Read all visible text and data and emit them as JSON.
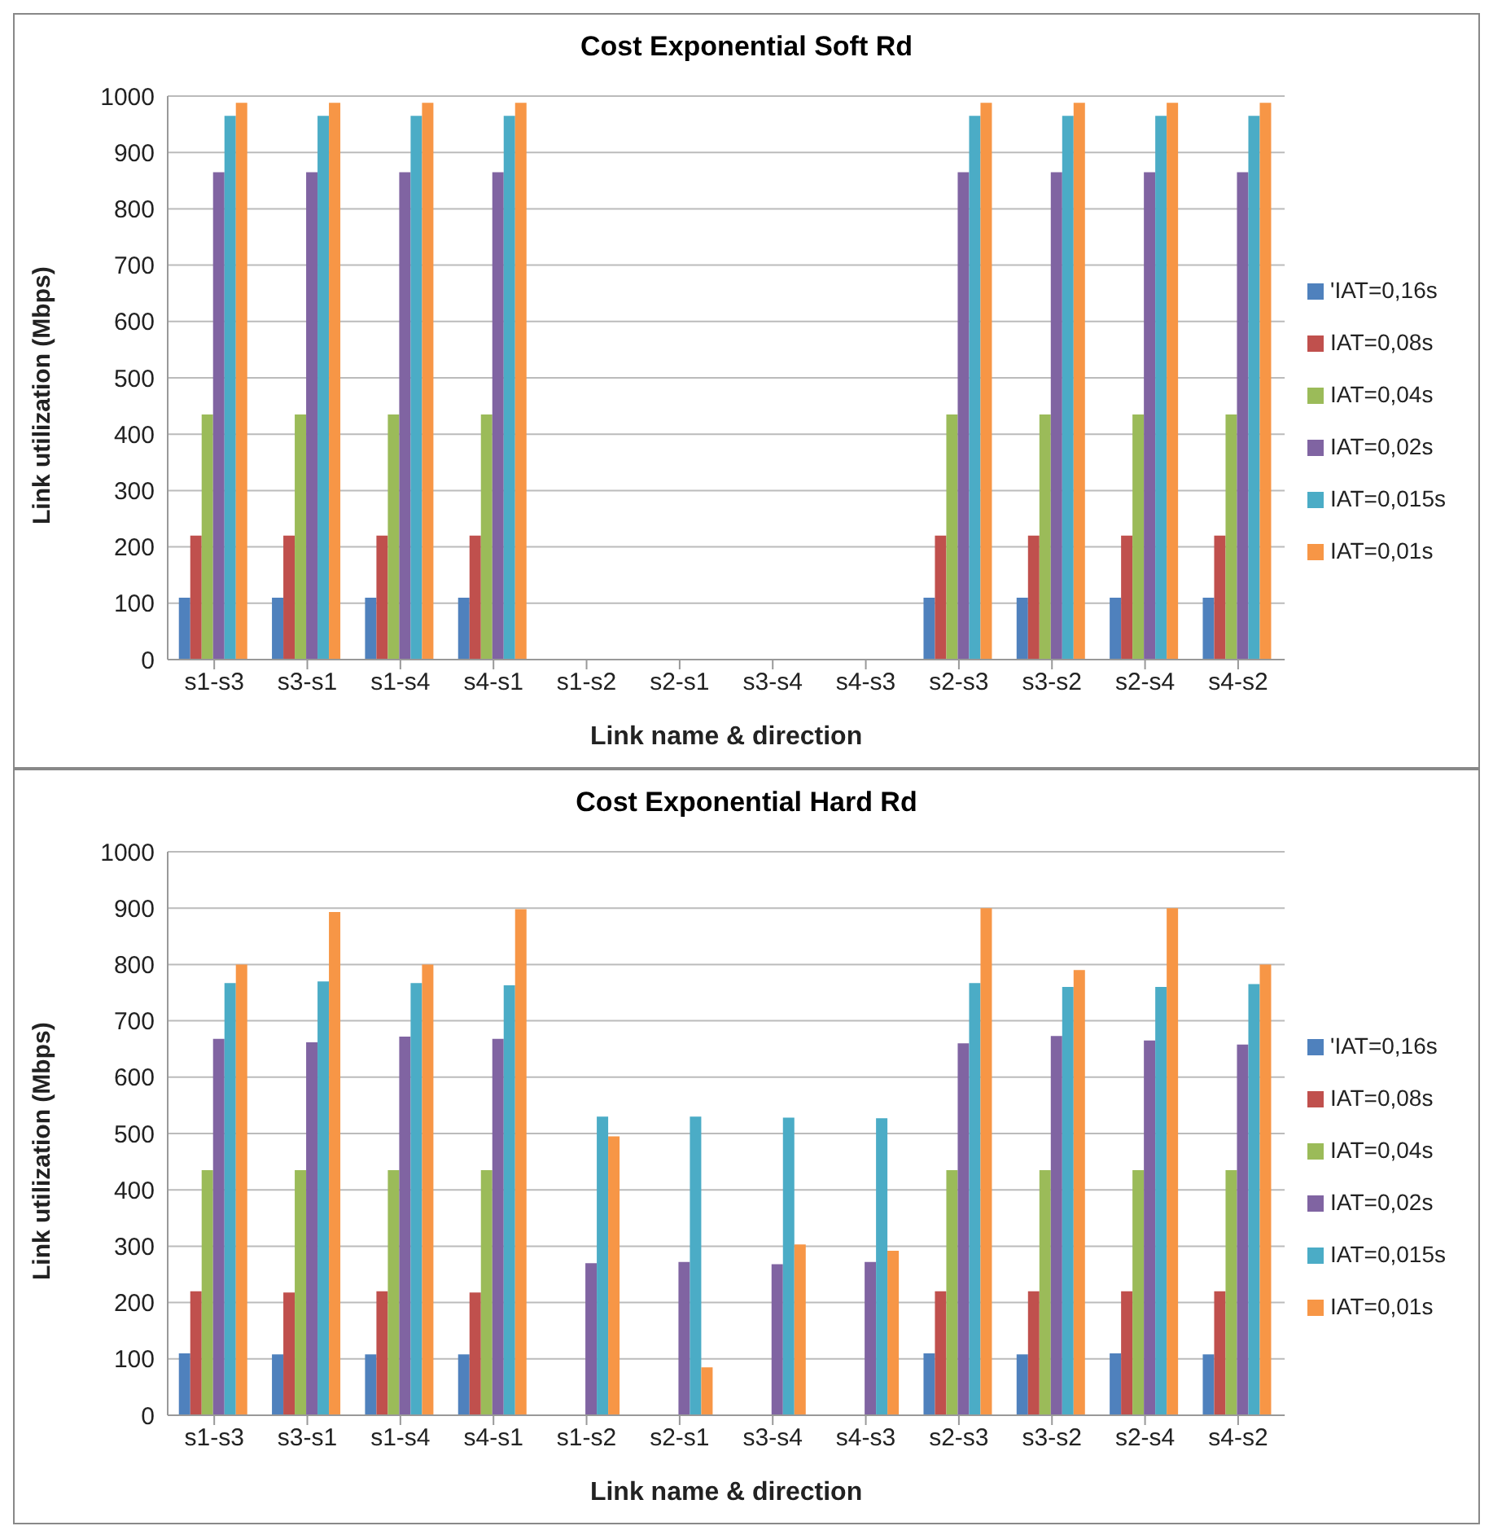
{
  "chart_data": [
    {
      "type": "bar",
      "title": "Cost Exponential Soft Rd",
      "xlabel": "Link name & direction",
      "ylabel": "Link utilization (Mbps)",
      "categories": [
        "s1-s3",
        "s3-s1",
        "s1-s4",
        "s4-s1",
        "s1-s2",
        "s2-s1",
        "s3-s4",
        "s4-s3",
        "s2-s3",
        "s3-s2",
        "s2-s4",
        "s4-s2"
      ],
      "ylim": [
        0,
        1000
      ],
      "yticks": [
        0,
        100,
        200,
        300,
        400,
        500,
        600,
        700,
        800,
        900,
        1000
      ],
      "grid": "y",
      "legend": "right",
      "series": [
        {
          "name": "'IAT=0,16s",
          "color": "#4f81bd",
          "values": [
            110,
            110,
            110,
            110,
            0,
            0,
            0,
            0,
            110,
            110,
            110,
            110
          ]
        },
        {
          "name": "IAT=0,08s",
          "color": "#c0504d",
          "values": [
            220,
            220,
            220,
            220,
            0,
            0,
            0,
            0,
            220,
            220,
            220,
            220
          ]
        },
        {
          "name": "IAT=0,04s",
          "color": "#9bbb59",
          "values": [
            435,
            435,
            435,
            435,
            0,
            0,
            0,
            0,
            435,
            435,
            435,
            435
          ]
        },
        {
          "name": "IAT=0,02s",
          "color": "#8064a2",
          "values": [
            865,
            865,
            865,
            865,
            0,
            0,
            0,
            0,
            865,
            865,
            865,
            865
          ]
        },
        {
          "name": "IAT=0,015s",
          "color": "#4bacc6",
          "values": [
            965,
            965,
            965,
            965,
            0,
            0,
            0,
            0,
            965,
            965,
            965,
            965
          ]
        },
        {
          "name": "IAT=0,01s",
          "color": "#f79646",
          "values": [
            988,
            988,
            988,
            988,
            0,
            0,
            0,
            0,
            988,
            988,
            988,
            988
          ]
        }
      ]
    },
    {
      "type": "bar",
      "title": "Cost Exponential Hard Rd",
      "xlabel": "Link name & direction",
      "ylabel": "Link utilization (Mbps)",
      "categories": [
        "s1-s3",
        "s3-s1",
        "s1-s4",
        "s4-s1",
        "s1-s2",
        "s2-s1",
        "s3-s4",
        "s4-s3",
        "s2-s3",
        "s3-s2",
        "s2-s4",
        "s4-s2"
      ],
      "ylim": [
        0,
        1000
      ],
      "yticks": [
        0,
        100,
        200,
        300,
        400,
        500,
        600,
        700,
        800,
        900,
        1000
      ],
      "grid": "y",
      "legend": "right",
      "series": [
        {
          "name": "'IAT=0,16s",
          "color": "#4f81bd",
          "values": [
            110,
            108,
            108,
            108,
            0,
            0,
            0,
            0,
            110,
            108,
            110,
            108
          ]
        },
        {
          "name": "IAT=0,08s",
          "color": "#c0504d",
          "values": [
            220,
            218,
            220,
            218,
            0,
            0,
            0,
            0,
            220,
            220,
            220,
            220
          ]
        },
        {
          "name": "IAT=0,04s",
          "color": "#9bbb59",
          "values": [
            435,
            435,
            435,
            435,
            0,
            0,
            0,
            0,
            435,
            435,
            435,
            435
          ]
        },
        {
          "name": "IAT=0,02s",
          "color": "#8064a2",
          "values": [
            668,
            662,
            672,
            668,
            270,
            272,
            268,
            272,
            660,
            673,
            665,
            658
          ]
        },
        {
          "name": "IAT=0,015s",
          "color": "#4bacc6",
          "values": [
            767,
            770,
            767,
            763,
            530,
            530,
            528,
            527,
            767,
            760,
            760,
            765
          ]
        },
        {
          "name": "IAT=0,01s",
          "color": "#f79646",
          "values": [
            800,
            893,
            800,
            898,
            495,
            85,
            303,
            292,
            900,
            790,
            900,
            800
          ]
        }
      ]
    }
  ]
}
